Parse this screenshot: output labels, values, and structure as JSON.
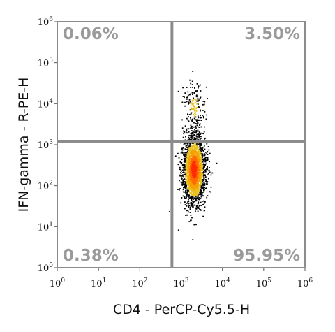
{
  "chart_data": {
    "type": "scatter",
    "plot_style": "flow cytometry density dot plot with quadrant gates",
    "xlabel": "CD4 - PerCP-Cy5.5-H",
    "ylabel": "IFN-gamma - R-PE-H",
    "x_scale": "log",
    "y_scale": "log",
    "xlim": [
      1,
      1000000
    ],
    "ylim": [
      1,
      1000000
    ],
    "x_ticks": [
      {
        "base": "10",
        "exp": "0"
      },
      {
        "base": "10",
        "exp": "1"
      },
      {
        "base": "10",
        "exp": "2"
      },
      {
        "base": "10",
        "exp": "3"
      },
      {
        "base": "10",
        "exp": "4"
      },
      {
        "base": "10",
        "exp": "5"
      },
      {
        "base": "10",
        "exp": "6"
      }
    ],
    "y_ticks": [
      {
        "base": "10",
        "exp": "0"
      },
      {
        "base": "10",
        "exp": "1"
      },
      {
        "base": "10",
        "exp": "2"
      },
      {
        "base": "10",
        "exp": "3"
      },
      {
        "base": "10",
        "exp": "4"
      },
      {
        "base": "10",
        "exp": "5"
      },
      {
        "base": "10",
        "exp": "6"
      }
    ],
    "gates": {
      "x": 600,
      "y": 1200
    },
    "quadrants": [
      {
        "position": "top-left",
        "label": "0.06%",
        "value": 0.06
      },
      {
        "position": "top-right",
        "label": "3.50%",
        "value": 3.5
      },
      {
        "position": "bottom-left",
        "label": "0.38%",
        "value": 0.38
      },
      {
        "position": "bottom-right",
        "label": "95.95%",
        "value": 95.95
      }
    ],
    "populations": [
      {
        "x_center": 2000,
        "y_center": 250,
        "x_spread_log": 0.14,
        "y_spread_log": 0.42,
        "share": 0.93
      },
      {
        "x_center": 2000,
        "y_center": 8000,
        "x_spread_log": 0.13,
        "y_spread_log": 0.35,
        "share": 0.07
      }
    ],
    "density_colors": [
      "#000000",
      "#e8c020",
      "#f5a000",
      "#ff6a00",
      "#ff2a00"
    ],
    "colors": {
      "gate_line": "#8c8c8c",
      "frame": "#8c8c8c",
      "quad_label": "#9a9a9a"
    },
    "grid": false,
    "legend": "none"
  }
}
